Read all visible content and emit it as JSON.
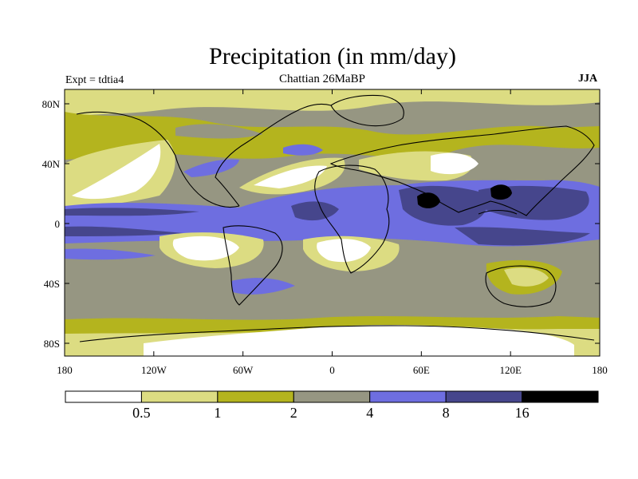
{
  "header": {
    "title": "Precipitation (in mm/day)",
    "experiment": "Expt = tdtia4",
    "period": "Chattian  26MaBP",
    "season": "JJA"
  },
  "map": {
    "y_ticks": [
      "80N",
      "40N",
      "0",
      "40S",
      "80S"
    ],
    "x_ticks": [
      "180",
      "120W",
      "60W",
      "0",
      "60E",
      "120E",
      "180"
    ],
    "lon_range": [
      -180,
      180
    ],
    "lat_range": [
      -90,
      90
    ]
  },
  "colorbar": {
    "labels": [
      "0.5",
      "1",
      "2",
      "4",
      "8",
      "16"
    ],
    "colors": [
      "#ffffff",
      "#dcdc82",
      "#b4b41e",
      "#969682",
      "#6e6ee0",
      "#46468c",
      "#000000"
    ]
  }
}
